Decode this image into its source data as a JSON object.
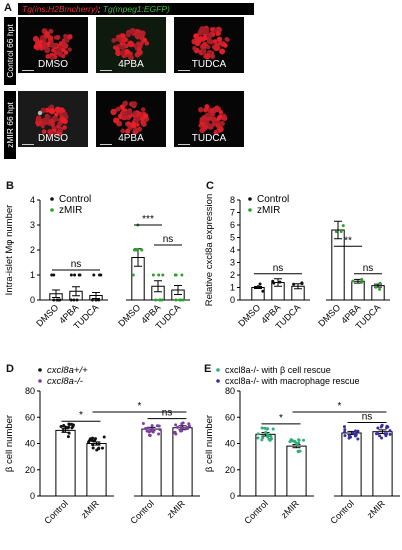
{
  "panel_a": {
    "letter": "A",
    "header": {
      "red_text": "Tg(ins:H2Bmcherry)",
      "sep": "; ",
      "green_text": "Tg(mpeg1:EGFP)"
    },
    "row_labels": [
      "Control 66 hpt",
      "zMIR 66 hpt"
    ],
    "treatments": [
      "DMSO",
      "4PBA",
      "TUDCA"
    ],
    "colors": {
      "red": "#e8303a",
      "green": "#3fbf3f",
      "bg": "#060606"
    }
  },
  "chart_data": [
    {
      "id": "B",
      "letter": "B",
      "type": "bar",
      "ylabel": "Intra-islet Mφ number",
      "ylim": [
        0,
        4
      ],
      "yticks": [
        0,
        1,
        2,
        3,
        4
      ],
      "categories": [
        "DMSO",
        "4PBA",
        "TUDCA",
        "DMSO",
        "4PBA",
        "TUDCA"
      ],
      "groups": [
        "Control",
        "Control",
        "Control",
        "zMIR",
        "zMIR",
        "zMIR"
      ],
      "values": [
        0.25,
        0.35,
        0.18,
        1.7,
        0.55,
        0.4
      ],
      "errors": [
        0.15,
        0.18,
        0.12,
        0.35,
        0.22,
        0.18
      ],
      "legend": [
        "Control",
        "zMIR"
      ],
      "significance": [
        {
          "label": "ns",
          "from": 0,
          "to": 2,
          "y": 1.2
        },
        {
          "label": "***",
          "from": 3,
          "to": 4,
          "y": 3.0
        },
        {
          "label": "ns",
          "from": 4,
          "to": 5,
          "y": 2.2
        }
      ]
    },
    {
      "id": "C",
      "letter": "C",
      "type": "bar",
      "ylabel": "Relative cxcl8a expression",
      "ylim": [
        0,
        8
      ],
      "yticks": [
        0,
        1,
        2,
        3,
        4,
        5,
        6,
        7,
        8
      ],
      "categories": [
        "DMSO",
        "4PBA",
        "TUDCA",
        "DMSO",
        "4PBA",
        "TUDCA"
      ],
      "groups": [
        "Control",
        "Control",
        "Control",
        "zMIR",
        "zMIR",
        "zMIR"
      ],
      "values": [
        1.0,
        1.4,
        1.1,
        5.6,
        1.5,
        1.15
      ],
      "errors": [
        0.08,
        0.3,
        0.2,
        0.7,
        0.15,
        0.12
      ],
      "legend": [
        "Control",
        "zMIR"
      ],
      "significance": [
        {
          "label": "ns",
          "from": 0,
          "to": 2,
          "y": 2.1
        },
        {
          "label": "**",
          "from": 3,
          "to": 4,
          "y": 4.3
        },
        {
          "label": "ns",
          "from": 4,
          "to": 5,
          "y": 2.1
        }
      ]
    },
    {
      "id": "D",
      "letter": "D",
      "type": "bar",
      "ylabel": "β cell number",
      "ylim": [
        0,
        80
      ],
      "yticks": [
        0,
        20,
        40,
        60,
        80
      ],
      "categories": [
        "Control",
        "zMIR",
        "Control",
        "zMIR"
      ],
      "groups": [
        "cxcl8a+/+",
        "cxcl8a+/+",
        "cxcl8a-/-",
        "cxcl8a-/-"
      ],
      "values": [
        50,
        40,
        51,
        52
      ],
      "errors": [
        1.5,
        1.2,
        1.3,
        1.5
      ],
      "legend": [
        "cxcl8a+/+",
        "cxcl8a-/-"
      ],
      "significance": [
        {
          "label": "*",
          "from": 0,
          "to": 1,
          "y": 57
        },
        {
          "label": "*",
          "from": 1,
          "to": 3,
          "y": 64
        },
        {
          "label": "ns",
          "from": 2,
          "to": 3,
          "y": 59
        }
      ]
    },
    {
      "id": "E",
      "letter": "E",
      "type": "bar",
      "ylabel": "β cell number",
      "ylim": [
        0,
        80
      ],
      "yticks": [
        0,
        20,
        40,
        60,
        80
      ],
      "categories": [
        "Control",
        "zMIR",
        "Control",
        "zMIR"
      ],
      "groups": [
        "β cell rescue",
        "β cell rescue",
        "macrophage rescue",
        "macrophage rescue"
      ],
      "values": [
        47,
        38,
        48,
        49
      ],
      "errors": [
        1.3,
        1.2,
        1.2,
        1.4
      ],
      "legend": [
        "cxcl8a-/- with β cell rescue",
        "cxcl8a-/- with macrophage rescue"
      ],
      "significance": [
        {
          "label": "*",
          "from": 0,
          "to": 1,
          "y": 55
        },
        {
          "label": "*",
          "from": 1,
          "to": 3,
          "y": 64
        },
        {
          "label": "ns",
          "from": 2,
          "to": 3,
          "y": 56
        }
      ]
    }
  ]
}
